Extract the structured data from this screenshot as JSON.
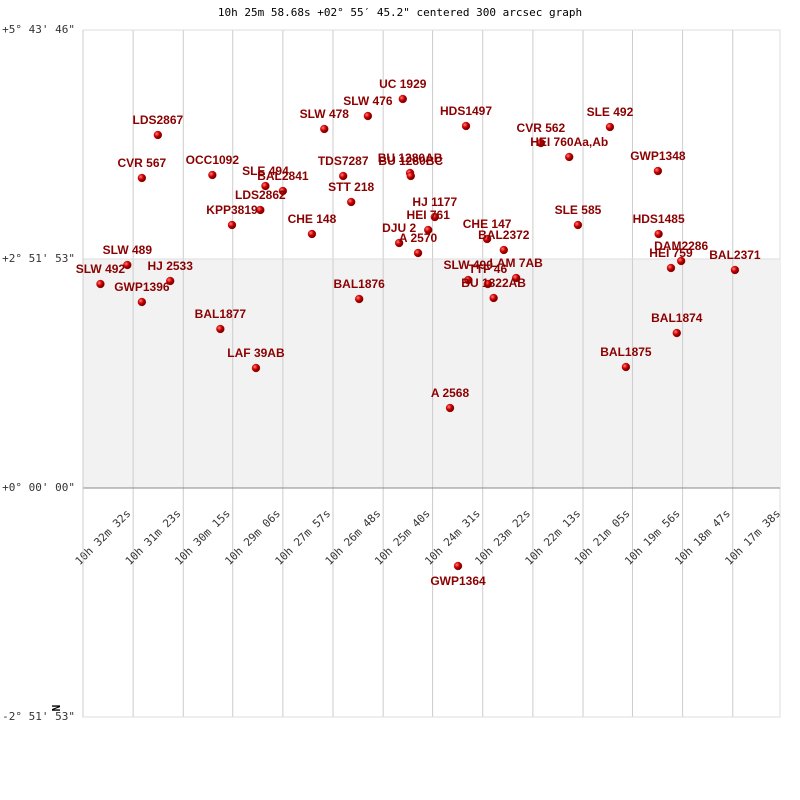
{
  "chart_data": {
    "type": "scatter",
    "title": "10h 25m 58.68s +02° 55′ 45.2\" centered 300 arcsec graph",
    "annotations": {
      "west": "W",
      "north": "N"
    },
    "xlim": [
      2021,
      1062
    ],
    "ylim": [
      -10313,
      20626
    ],
    "xticks": [
      {
        "value": 1952,
        "label": "10h 32m 32s"
      },
      {
        "value": 1883,
        "label": "10h 31m 23s"
      },
      {
        "value": 1815,
        "label": "10h 30m 15s"
      },
      {
        "value": 1746,
        "label": "10h 29m 06s"
      },
      {
        "value": 1677,
        "label": "10h 27m 57s"
      },
      {
        "value": 1608,
        "label": "10h 26m 48s"
      },
      {
        "value": 1540,
        "label": "10h 25m 40s"
      },
      {
        "value": 1471,
        "label": "10h 24m 31s"
      },
      {
        "value": 1402,
        "label": "10h 23m 22s"
      },
      {
        "value": 1333,
        "label": "10h 22m 13s"
      },
      {
        "value": 1265,
        "label": "10h 21m 05s"
      },
      {
        "value": 1196,
        "label": "10h 19m 56s"
      },
      {
        "value": 1127,
        "label": "10h 18m 47s"
      },
      {
        "value": 1058,
        "label": "10h 17m 38s"
      }
    ],
    "yticks": [
      {
        "value": 20626,
        "label": "+5° 43' 46\""
      },
      {
        "value": 10313,
        "label": "+2° 51' 53\""
      },
      {
        "value": 0,
        "label": "+0° 00' 00\""
      },
      {
        "value": -10313,
        "label": "-2° 51' 53\""
      }
    ],
    "series": [
      {
        "color": "#cc0000",
        "labels": [
          "UC 1929",
          "SLW 476",
          "SLW 478",
          "HDS1497",
          "LDS2867",
          "SLE 492",
          "CVR 562",
          "HEI 760Aa,Ab",
          "GWP1348",
          "CVR 567",
          "OCC1092",
          "SLE 494",
          "BAL2841",
          "TDS7287",
          "BU 1280AB",
          "BU 1280BC",
          "STT 218",
          "LDS2862",
          "KPP3819",
          "CHE 148",
          "HJ 1177",
          "DJU  2",
          "HEI 761",
          "A  2570",
          "CHE 147",
          "BAL2372",
          "SLE 585",
          "HDS1485",
          "DAM2286",
          "HEI 759",
          "BAL2371",
          "SLW 489",
          "SLW 492",
          "HJ 2533",
          "GWP1396",
          "SLW 490",
          "LAM  7AB",
          "TTF 46",
          "BU 1322AB",
          "BAL1876",
          "BAL1877",
          "BAL1874",
          "LAF  39AB",
          "BAL1875",
          "A  2568",
          "GWP1364"
        ],
        "x": [
          1581,
          1629,
          1689,
          1494,
          1918,
          1296,
          1391,
          1352,
          1230,
          1940,
          1843,
          1770,
          1746,
          1663,
          1571,
          1570,
          1652,
          1777,
          1816,
          1706,
          1537,
          1586,
          1546,
          1560,
          1465,
          1442,
          1340,
          1229,
          1198,
          1212,
          1124,
          1960,
          1997,
          1901,
          1940,
          1491,
          1425,
          1464,
          1456,
          1641,
          1832,
          1204,
          1783,
          1274,
          1516,
          1505
        ],
        "y": [
          17519,
          16753,
          16168,
          16303,
          15897,
          16258,
          15537,
          14907,
          14276,
          13961,
          14096,
          13601,
          13375,
          14051,
          14186,
          14051,
          12880,
          12520,
          11844,
          11439,
          12204,
          11034,
          11619,
          10583,
          11214,
          10718,
          11844,
          11439,
          10223,
          9908,
          9818,
          10043,
          9187,
          9322,
          8377,
          9367,
          9457,
          9187,
          8557,
          8512,
          7161,
          6980,
          5404,
          5449,
          3603,
          -3513
        ]
      }
    ]
  }
}
